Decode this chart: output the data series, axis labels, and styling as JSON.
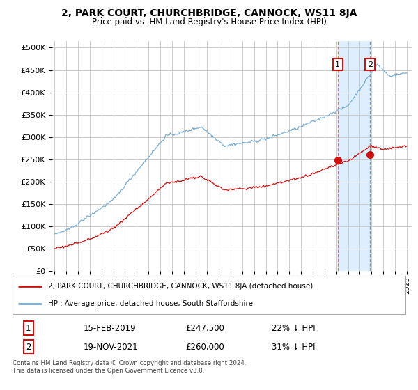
{
  "title": "2, PARK COURT, CHURCHBRIDGE, CANNOCK, WS11 8JA",
  "subtitle": "Price paid vs. HM Land Registry's House Price Index (HPI)",
  "ylabel_ticks": [
    "£0",
    "£50K",
    "£100K",
    "£150K",
    "£200K",
    "£250K",
    "£300K",
    "£350K",
    "£400K",
    "£450K",
    "£500K"
  ],
  "ytick_values": [
    0,
    50000,
    100000,
    150000,
    200000,
    250000,
    300000,
    350000,
    400000,
    450000,
    500000
  ],
  "ylim": [
    0,
    515000
  ],
  "xlim_start": 1994.8,
  "xlim_end": 2025.5,
  "hpi_color": "#7aadd4",
  "price_color": "#cc1111",
  "sale1_date": 2019.12,
  "sale1_price": 247500,
  "sale1_label": "1",
  "sale2_date": 2021.88,
  "sale2_price": 260000,
  "sale2_label": "2",
  "legend_line1": "2, PARK COURT, CHURCHBRIDGE, CANNOCK, WS11 8JA (detached house)",
  "legend_line2": "HPI: Average price, detached house, South Staffordshire",
  "table_row1": [
    "1",
    "15-FEB-2019",
    "£247,500",
    "22% ↓ HPI"
  ],
  "table_row2": [
    "2",
    "19-NOV-2021",
    "£260,000",
    "31% ↓ HPI"
  ],
  "footnote": "Contains HM Land Registry data © Crown copyright and database right 2024.\nThis data is licensed under the Open Government Licence v3.0.",
  "background_color": "#ffffff",
  "grid_color": "#cccccc",
  "shaded_color": "#ddeeff",
  "hpi_seed": 42,
  "price_seed": 99
}
